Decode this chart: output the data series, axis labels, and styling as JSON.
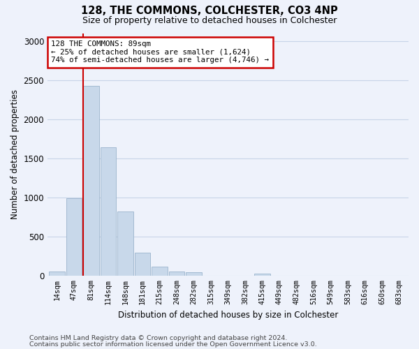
{
  "title": "128, THE COMMONS, COLCHESTER, CO3 4NP",
  "subtitle": "Size of property relative to detached houses in Colchester",
  "xlabel": "Distribution of detached houses by size in Colchester",
  "ylabel": "Number of detached properties",
  "bar_labels": [
    "14sqm",
    "47sqm",
    "81sqm",
    "114sqm",
    "148sqm",
    "181sqm",
    "215sqm",
    "248sqm",
    "282sqm",
    "315sqm",
    "349sqm",
    "382sqm",
    "415sqm",
    "449sqm",
    "482sqm",
    "516sqm",
    "549sqm",
    "583sqm",
    "616sqm",
    "650sqm",
    "683sqm"
  ],
  "bar_values": [
    60,
    990,
    2430,
    1640,
    820,
    300,
    120,
    55,
    45,
    0,
    0,
    0,
    30,
    0,
    0,
    0,
    0,
    0,
    0,
    0,
    0
  ],
  "bar_color": "#c8d8ea",
  "bar_edge_color": "#9ab4cc",
  "highlight_bar_index": 2,
  "highlight_color": "#cc0000",
  "annotation_line1": "128 THE COMMONS: 89sqm",
  "annotation_line2": "← 25% of detached houses are smaller (1,624)",
  "annotation_line3": "74% of semi-detached houses are larger (4,746) →",
  "annotation_box_color": "#ffffff",
  "annotation_box_edge": "#cc0000",
  "ylim": [
    0,
    3100
  ],
  "yticks": [
    0,
    500,
    1000,
    1500,
    2000,
    2500,
    3000
  ],
  "grid_color": "#c8d4e8",
  "footnote1": "Contains HM Land Registry data © Crown copyright and database right 2024.",
  "footnote2": "Contains public sector information licensed under the Open Government Licence v3.0.",
  "bg_color": "#eef2fb"
}
